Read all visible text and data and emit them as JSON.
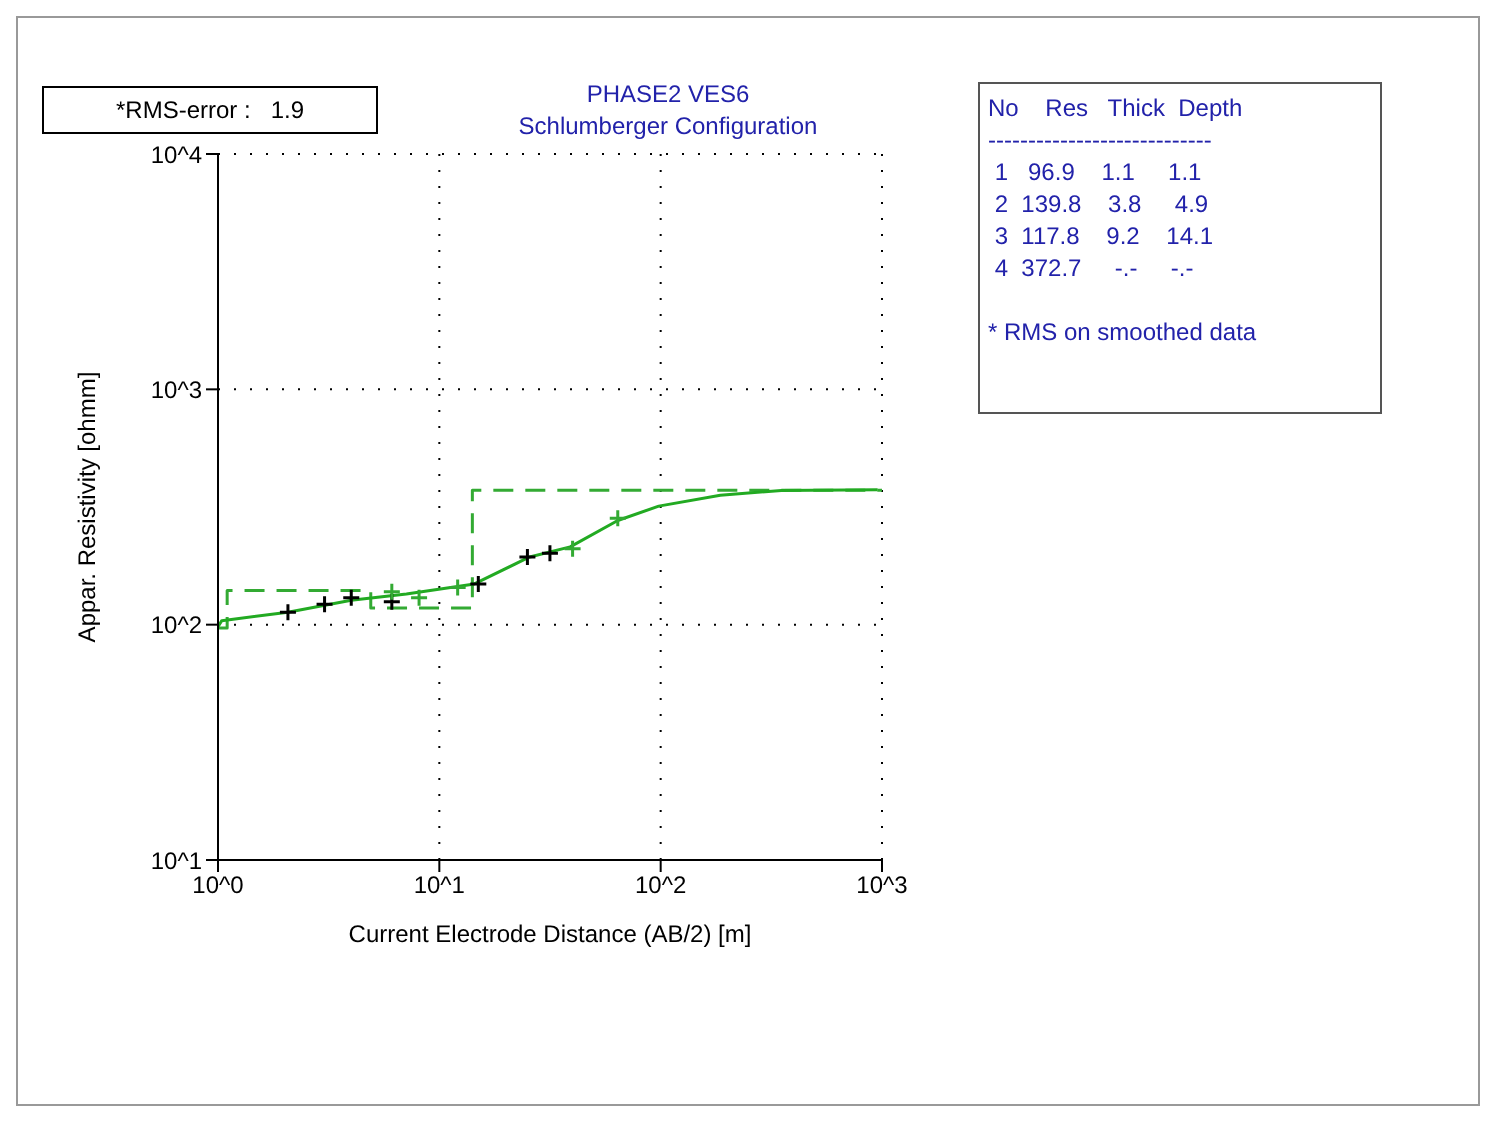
{
  "chart_data": {
    "type": "line",
    "title": "PHASE2 VES6",
    "subtitle": "Schlumberger Configuration",
    "xlabel": "Current Electrode Distance (AB/2) [m]",
    "ylabel": "Appar. Resistivity [ohmm]",
    "log": "xy",
    "grid": true,
    "xlim": [
      1,
      1000
    ],
    "xticks": [
      {
        "value": 1,
        "label": "10^0"
      },
      {
        "value": 10,
        "label": "10^1"
      },
      {
        "value": 100,
        "label": "10^2"
      },
      {
        "value": 1000,
        "label": "10^3"
      }
    ],
    "ylim": [
      10,
      10000
    ],
    "yticks": [
      {
        "value": 10,
        "label": "10^1"
      },
      {
        "value": 100,
        "label": "10^2"
      },
      {
        "value": 1000,
        "label": "10^3"
      },
      {
        "value": 10000,
        "label": "10^4"
      }
    ],
    "series": [
      {
        "type": "step",
        "color": "#33aa33",
        "line_style": "dashed",
        "x": [
          1,
          1.1,
          1.1,
          4.9,
          4.9,
          14.1,
          14.1,
          1000
        ],
        "values": [
          96.9,
          96.9,
          139.8,
          139.8,
          117.8,
          117.8,
          372.7,
          372.7
        ]
      },
      {
        "color": "#22aa22",
        "line_style": "solid",
        "x": [
          1,
          1.04,
          2.07,
          4,
          7.1,
          14.4,
          25.6,
          39,
          64,
          98,
          186,
          351,
          955
        ],
        "values": [
          98,
          104,
          113,
          127,
          135,
          149,
          194,
          214,
          277,
          319,
          355,
          372,
          374
        ]
      },
      {
        "type": "scatter",
        "color": "#000000",
        "marker": "cross",
        "x": [
          2.07,
          3.03,
          4,
          6.1,
          15,
          25,
          31.6
        ],
        "values": [
          113,
          122,
          130,
          125,
          149,
          194,
          201
        ]
      },
      {
        "type": "scatter",
        "color": "#33aa33",
        "marker": "cross",
        "x": [
          6.1,
          8.1,
          12.1,
          40,
          64
        ],
        "values": [
          138,
          130,
          144,
          210,
          283
        ]
      }
    ],
    "annotations": [
      "*RMS-error :   1.9",
      "No    Res   Thick  Depth",
      "----------------------------",
      " 1   96.9    1.1     1.1",
      " 2  139.8    3.8     4.9",
      " 3  117.8    9.2    14.1",
      " 4  372.7     -.-     -.-",
      "* RMS on smoothed data"
    ]
  }
}
